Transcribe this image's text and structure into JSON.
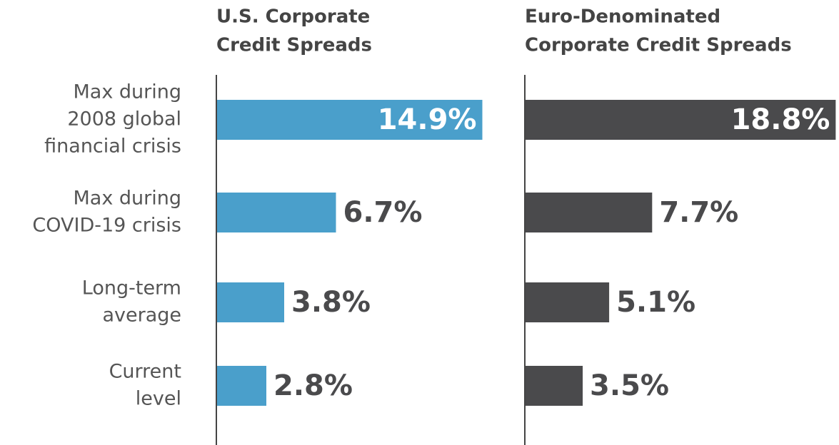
{
  "chart_data": [
    {
      "type": "bar",
      "orientation": "horizontal",
      "title": [
        "U.S. Corporate",
        "Credit Spreads"
      ],
      "categories": [
        [
          "Max during",
          "2008 global",
          "financial crisis"
        ],
        [
          "Max during",
          "COVID-19 crisis"
        ],
        [
          "Long-term",
          "average"
        ],
        [
          "Current",
          "level"
        ]
      ],
      "values": [
        14.9,
        6.7,
        3.8,
        2.8
      ],
      "value_labels": [
        "14.9%",
        "6.7%",
        "3.8%",
        "2.8%"
      ],
      "color": "#4a9fcb",
      "xlim": [
        0,
        16
      ]
    },
    {
      "type": "bar",
      "orientation": "horizontal",
      "title": [
        "Euro-Denominated",
        "Corporate Credit Spreads"
      ],
      "values": [
        18.8,
        7.7,
        5.1,
        3.5
      ],
      "value_labels": [
        "18.8%",
        "7.7%",
        "5.1%",
        "3.5%"
      ],
      "color": "#4a4a4c",
      "xlim": [
        0,
        19
      ]
    }
  ]
}
